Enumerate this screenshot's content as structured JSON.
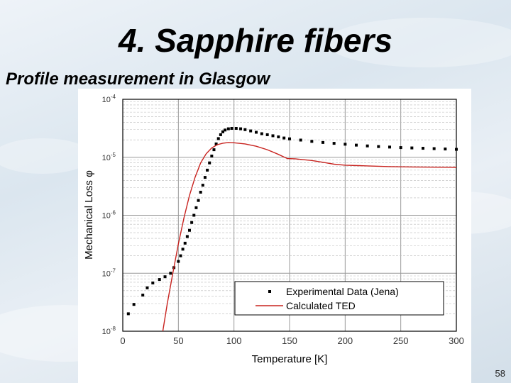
{
  "slide": {
    "title": "4. Sapphire fibers",
    "subtitle": "Profile measurement in Glasgow",
    "page_number": "58"
  },
  "chart_data": {
    "type": "scatter",
    "xlabel": "Temperature [K]",
    "ylabel": "Mechanical Loss φ",
    "xlim": [
      0,
      300
    ],
    "ylim_log10": [
      -8,
      -4
    ],
    "x_ticks": [
      0,
      50,
      100,
      150,
      200,
      250,
      300
    ],
    "y_ticks": [
      {
        "base": "10",
        "exp": "-4",
        "log10": -4
      },
      {
        "base": "10",
        "exp": "-5",
        "log10": -5
      },
      {
        "base": "10",
        "exp": "-6",
        "log10": -6
      },
      {
        "base": "10",
        "exp": "-7",
        "log10": -7
      },
      {
        "base": "10",
        "exp": "-8",
        "log10": -8
      }
    ],
    "grid": true,
    "legend_position": "bottom-right",
    "series": [
      {
        "name": "Experimental Data (Jena)",
        "kind": "points",
        "color": "#000000",
        "points": [
          [
            5,
            2e-08
          ],
          [
            10,
            2.9e-08
          ],
          [
            18,
            4.2e-08
          ],
          [
            22,
            5.6e-08
          ],
          [
            27,
            6.8e-08
          ],
          [
            33,
            7.8e-08
          ],
          [
            38,
            8.7e-08
          ],
          [
            43,
            1e-07
          ],
          [
            46,
            1.25e-07
          ],
          [
            50,
            1.6e-07
          ],
          [
            52,
            2e-07
          ],
          [
            54,
            2.6e-07
          ],
          [
            56,
            3.3e-07
          ],
          [
            58,
            4.3e-07
          ],
          [
            60,
            5.5e-07
          ],
          [
            62,
            7.5e-07
          ],
          [
            64,
            1e-06
          ],
          [
            66,
            1.35e-06
          ],
          [
            68,
            1.8e-06
          ],
          [
            70,
            2.5e-06
          ],
          [
            72,
            3.3e-06
          ],
          [
            74,
            4.5e-06
          ],
          [
            76,
            6e-06
          ],
          [
            78,
            8e-06
          ],
          [
            80,
            1.05e-05
          ],
          [
            82,
            1.35e-05
          ],
          [
            84,
            1.7e-05
          ],
          [
            86,
            2.1e-05
          ],
          [
            88,
            2.45e-05
          ],
          [
            90,
            2.75e-05
          ],
          [
            92,
            2.95e-05
          ],
          [
            95,
            3.1e-05
          ],
          [
            98,
            3.15e-05
          ],
          [
            102,
            3.15e-05
          ],
          [
            106,
            3.1e-05
          ],
          [
            110,
            3e-05
          ],
          [
            115,
            2.85e-05
          ],
          [
            120,
            2.7e-05
          ],
          [
            125,
            2.55e-05
          ],
          [
            130,
            2.45e-05
          ],
          [
            135,
            2.35e-05
          ],
          [
            140,
            2.25e-05
          ],
          [
            145,
            2.15e-05
          ],
          [
            150,
            2.08e-05
          ],
          [
            160,
            1.98e-05
          ],
          [
            170,
            1.88e-05
          ],
          [
            180,
            1.8e-05
          ],
          [
            190,
            1.74e-05
          ],
          [
            200,
            1.68e-05
          ],
          [
            210,
            1.62e-05
          ],
          [
            220,
            1.57e-05
          ],
          [
            230,
            1.53e-05
          ],
          [
            240,
            1.5e-05
          ],
          [
            250,
            1.47e-05
          ],
          [
            260,
            1.45e-05
          ],
          [
            270,
            1.43e-05
          ],
          [
            280,
            1.41e-05
          ],
          [
            290,
            1.39e-05
          ],
          [
            300,
            1.37e-05
          ]
        ]
      },
      {
        "name": "Calculated TED",
        "kind": "line",
        "color": "#c8231f",
        "points": [
          [
            36,
            1e-08
          ],
          [
            40,
            3e-08
          ],
          [
            45,
            1e-07
          ],
          [
            50,
            3.2e-07
          ],
          [
            55,
            9e-07
          ],
          [
            60,
            2.2e-06
          ],
          [
            65,
            4.5e-06
          ],
          [
            70,
            8e-06
          ],
          [
            75,
            1.15e-05
          ],
          [
            80,
            1.45e-05
          ],
          [
            85,
            1.65e-05
          ],
          [
            90,
            1.75e-05
          ],
          [
            95,
            1.8e-05
          ],
          [
            100,
            1.78e-05
          ],
          [
            110,
            1.7e-05
          ],
          [
            120,
            1.55e-05
          ],
          [
            130,
            1.35e-05
          ],
          [
            140,
            1.12e-05
          ],
          [
            148,
            9.5e-06
          ],
          [
            155,
            9.4e-06
          ],
          [
            170,
            8.8e-06
          ],
          [
            180,
            8.2e-06
          ],
          [
            190,
            7.6e-06
          ],
          [
            200,
            7.3e-06
          ],
          [
            220,
            7.1e-06
          ],
          [
            240,
            6.9e-06
          ],
          [
            260,
            6.8e-06
          ],
          [
            280,
            6.75e-06
          ],
          [
            300,
            6.7e-06
          ]
        ]
      }
    ]
  }
}
